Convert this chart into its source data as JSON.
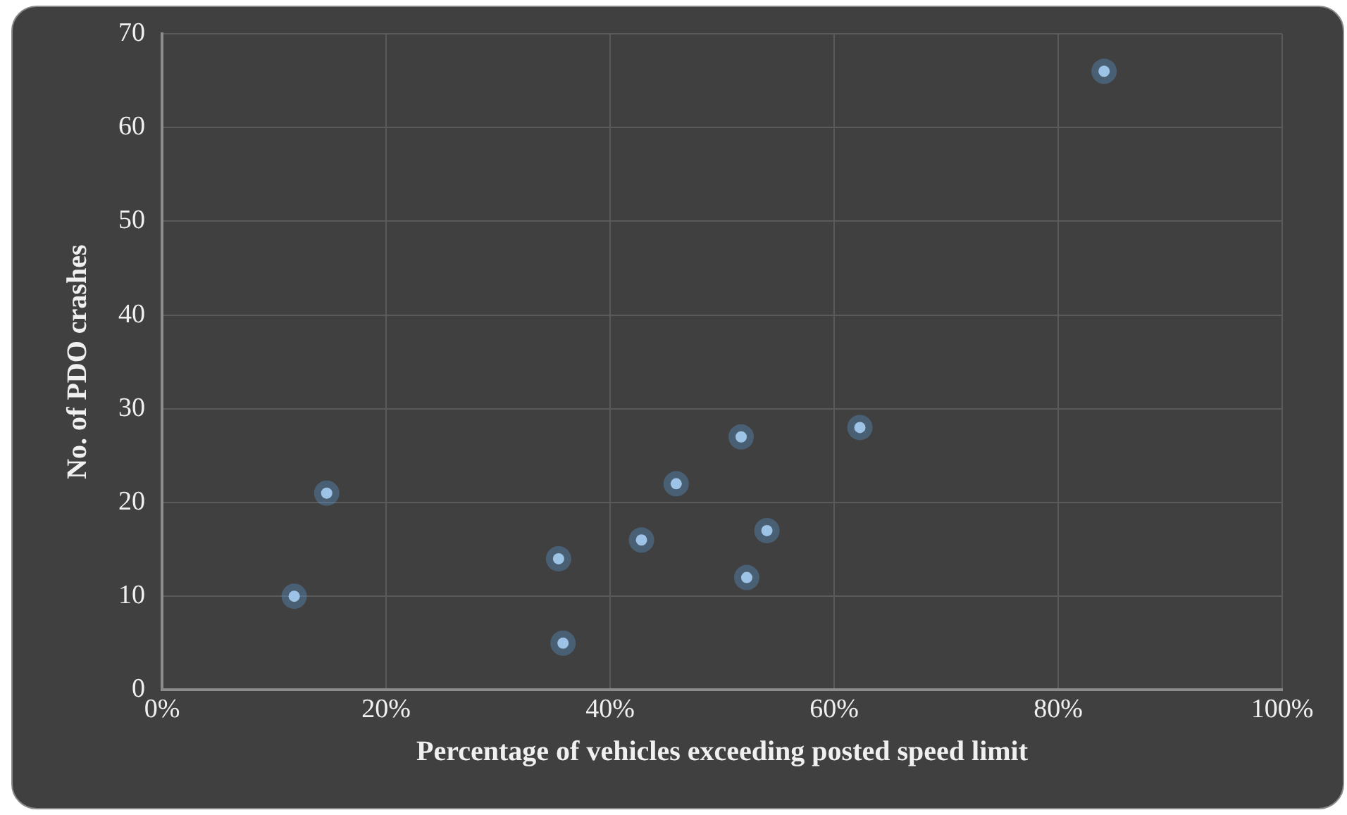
{
  "chart_data": {
    "type": "scatter",
    "xlabel": "Percentage of vehicles exceeding posted speed limit",
    "ylabel": "No. of PDO crashes",
    "x": [
      11.8,
      14.7,
      35.4,
      35.8,
      42.8,
      45.9,
      51.7,
      54.0,
      52.2,
      62.3,
      84.1
    ],
    "values": [
      10,
      21,
      14,
      5,
      16,
      22,
      27,
      17,
      12,
      28,
      66
    ],
    "color": "#9dc3e6",
    "marker": "circle",
    "grid": true,
    "legend": false,
    "xlim": [
      0,
      100
    ],
    "xticks": [
      {
        "value": 0,
        "label": "0%"
      },
      {
        "value": 20,
        "label": "20%"
      },
      {
        "value": 40,
        "label": "40%"
      },
      {
        "value": 60,
        "label": "60%"
      },
      {
        "value": 80,
        "label": "80%"
      },
      {
        "value": 100,
        "label": "100%"
      }
    ],
    "ylim": [
      0,
      70
    ],
    "yticks": [
      0,
      10,
      20,
      30,
      40,
      50,
      60,
      70
    ]
  }
}
